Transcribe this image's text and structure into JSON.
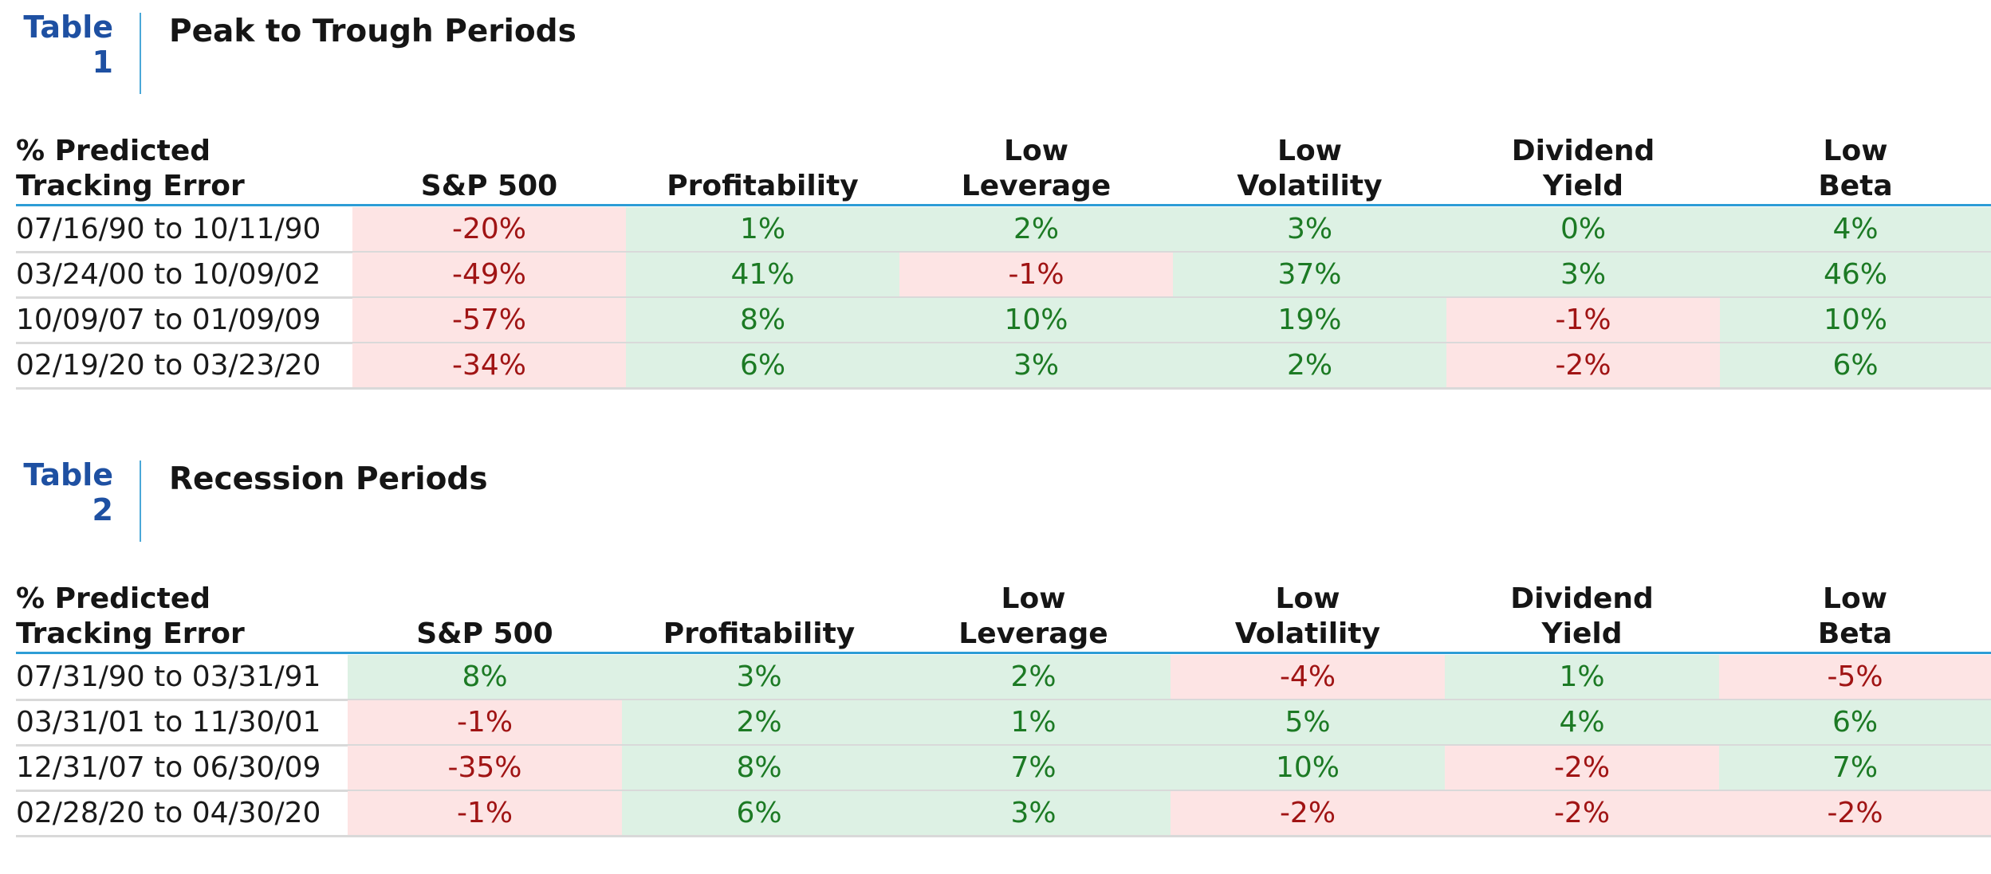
{
  "colors": {
    "label_blue": "#1e50a2",
    "divider": "#4aa8d8",
    "header_rule": "#2d9dd6",
    "positive_bg": "#ddf1e4",
    "positive_text": "#1c7a24",
    "negative_bg": "#fde4e4",
    "negative_text": "#a01414"
  },
  "tables": [
    {
      "label": "Table\n1",
      "title": "Peak to Trough Periods",
      "header": [
        "% Predicted\nTracking Error",
        "S&P 500",
        "Profitability",
        "Low\nLeverage",
        "Low\nVolatility",
        "Dividend\nYield",
        "Low\nBeta"
      ],
      "rows": [
        {
          "date": "07/16/90 to 10/11/90",
          "values": [
            "-20%",
            "1%",
            "2%",
            "3%",
            "0%",
            "4%"
          ]
        },
        {
          "date": "03/24/00 to 10/09/02",
          "values": [
            "-49%",
            "41%",
            "-1%",
            "37%",
            "3%",
            "46%"
          ]
        },
        {
          "date": "10/09/07 to 01/09/09",
          "values": [
            "-57%",
            "8%",
            "10%",
            "19%",
            "-1%",
            "10%"
          ]
        },
        {
          "date": "02/19/20 to 03/23/20",
          "values": [
            "-34%",
            "6%",
            "3%",
            "2%",
            "-2%",
            "6%"
          ]
        }
      ]
    },
    {
      "label": "Table\n2",
      "title": "Recession Periods",
      "header": [
        "% Predicted\nTracking Error",
        "S&P 500",
        "Profitability",
        "Low\nLeverage",
        "Low\nVolatility",
        "Dividend\nYield",
        "Low\nBeta"
      ],
      "rows": [
        {
          "date": "07/31/90 to 03/31/91",
          "values": [
            "8%",
            "3%",
            "2%",
            "-4%",
            "1%",
            "-5%"
          ]
        },
        {
          "date": "03/31/01 to 11/30/01",
          "values": [
            "-1%",
            "2%",
            "1%",
            "5%",
            "4%",
            "6%"
          ]
        },
        {
          "date": "12/31/07 to 06/30/09",
          "values": [
            "-35%",
            "8%",
            "7%",
            "10%",
            "-2%",
            "7%"
          ]
        },
        {
          "date": "02/28/20 to 04/30/20",
          "values": [
            "-1%",
            "6%",
            "3%",
            "-2%",
            "-2%",
            "-2%"
          ]
        }
      ]
    }
  ]
}
